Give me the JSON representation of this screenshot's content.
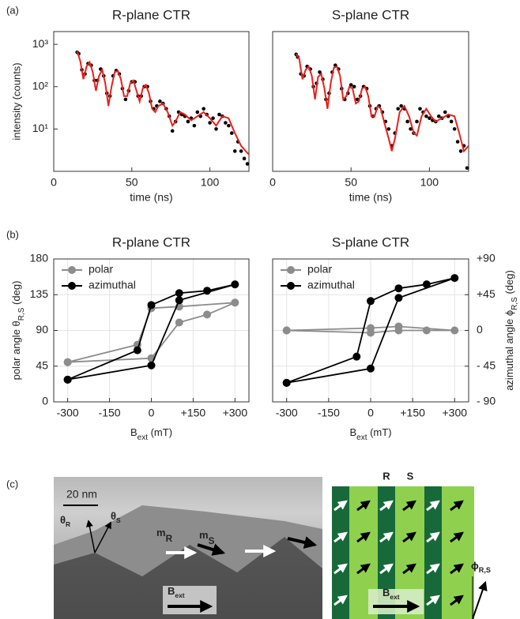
{
  "panel_labels": [
    "(a)",
    "(b)",
    "(c)"
  ],
  "chart_data": [
    {
      "type": "line",
      "title": "R-plane CTR",
      "xlabel": "time (ns)",
      "ylabel": "intensity (counts)",
      "xlim": [
        0,
        125
      ],
      "xticks": [
        0,
        50,
        100
      ],
      "ylim": [
        1,
        2000
      ],
      "log_y": true,
      "yticks": [
        {
          "value": 10,
          "label": "10¹"
        },
        {
          "value": 100,
          "label": "10²"
        },
        {
          "value": 1000,
          "label": "10³"
        }
      ],
      "series": [
        {
          "mode": "markers",
          "color": "#000000",
          "x": [
            15,
            16,
            18,
            20,
            22,
            24,
            26,
            28,
            30,
            32,
            34,
            36,
            38,
            40,
            42,
            44,
            46,
            48,
            50,
            52,
            54,
            56,
            58,
            60,
            62,
            64,
            66,
            68,
            70,
            72,
            74,
            76,
            78,
            80,
            82,
            84,
            86,
            88,
            90,
            92,
            94,
            96,
            98,
            100,
            102,
            104,
            106,
            108,
            110,
            112,
            114,
            116,
            118,
            120,
            122,
            124
          ],
          "values": [
            650,
            600,
            250,
            200,
            350,
            320,
            140,
            140,
            260,
            180,
            70,
            60,
            180,
            240,
            200,
            90,
            50,
            80,
            130,
            130,
            60,
            60,
            100,
            100,
            45,
            30,
            35,
            45,
            40,
            30,
            20,
            9,
            15,
            25,
            22,
            20,
            15,
            18,
            12,
            25,
            20,
            30,
            22,
            14,
            18,
            10,
            22,
            20,
            14,
            12,
            8,
            3,
            5,
            3,
            2,
            1.5
          ]
        },
        {
          "mode": "line",
          "color": "#e8211c",
          "x": [
            15,
            17,
            19,
            21,
            23,
            25,
            27,
            29,
            31,
            33,
            35,
            37,
            39,
            41,
            43,
            45,
            47,
            49,
            51,
            53,
            55,
            57,
            59,
            61,
            63,
            65,
            67,
            70,
            73,
            76,
            78,
            81,
            84,
            88,
            92,
            96,
            100,
            104,
            108,
            112,
            116,
            120,
            123,
            125
          ],
          "values": [
            700,
            400,
            150,
            300,
            380,
            220,
            80,
            180,
            250,
            120,
            35,
            100,
            220,
            240,
            150,
            60,
            60,
            120,
            140,
            80,
            45,
            90,
            110,
            70,
            30,
            25,
            35,
            40,
            25,
            12,
            15,
            25,
            22,
            16,
            20,
            25,
            18,
            12,
            20,
            18,
            8,
            4,
            3,
            2.5
          ]
        }
      ]
    },
    {
      "type": "line",
      "title": "S-plane CTR",
      "xlabel": "time (ns)",
      "xlim": [
        0,
        125
      ],
      "xticks": [
        0,
        50,
        100
      ],
      "ylim": [
        1,
        2000
      ],
      "log_y": true,
      "series": [
        {
          "mode": "markers",
          "color": "#000000",
          "x": [
            15,
            16,
            18,
            20,
            22,
            24,
            26,
            28,
            30,
            32,
            34,
            36,
            38,
            40,
            42,
            44,
            46,
            48,
            50,
            52,
            54,
            56,
            58,
            60,
            62,
            64,
            66,
            68,
            70,
            72,
            74,
            76,
            78,
            80,
            82,
            84,
            86,
            88,
            90,
            92,
            94,
            96,
            98,
            100,
            102,
            104,
            106,
            108,
            110,
            112,
            114,
            116,
            118,
            120,
            122,
            124
          ],
          "values": [
            580,
            500,
            200,
            180,
            300,
            260,
            100,
            120,
            220,
            150,
            50,
            70,
            220,
            320,
            260,
            90,
            50,
            70,
            110,
            100,
            50,
            60,
            100,
            90,
            35,
            20,
            30,
            35,
            25,
            15,
            10,
            4,
            8,
            30,
            35,
            30,
            15,
            10,
            8,
            15,
            30,
            25,
            20,
            18,
            16,
            15,
            20,
            18,
            25,
            20,
            15,
            10,
            5,
            3,
            4,
            1.2
          ]
        },
        {
          "mode": "line",
          "color": "#e8211c",
          "x": [
            15,
            17,
            19,
            21,
            23,
            25,
            27,
            29,
            31,
            33,
            35,
            37,
            39,
            41,
            43,
            45,
            47,
            49,
            51,
            53,
            55,
            57,
            59,
            61,
            63,
            65,
            67,
            69,
            71,
            74,
            76,
            78,
            81,
            84,
            87,
            90,
            92,
            95,
            98,
            101,
            104,
            108,
            112,
            116,
            119,
            122,
            125
          ],
          "values": [
            600,
            450,
            150,
            250,
            300,
            180,
            50,
            170,
            200,
            90,
            30,
            120,
            280,
            300,
            180,
            50,
            60,
            100,
            90,
            40,
            45,
            90,
            100,
            60,
            20,
            20,
            35,
            30,
            15,
            6,
            3,
            6,
            25,
            35,
            20,
            8,
            7,
            20,
            30,
            20,
            15,
            18,
            22,
            20,
            8,
            3,
            4
          ]
        }
      ]
    },
    {
      "type": "line",
      "title": "R-plane CTR",
      "xlabel_parts": [
        {
          "text": "B"
        },
        {
          "text": "ext",
          "sub": true
        },
        {
          "text": " (mT)"
        }
      ],
      "ylabel_parts": [
        {
          "text": "polar angle θ"
        },
        {
          "text": "R,S",
          "sub": true
        },
        {
          "text": " (deg)"
        }
      ],
      "xlim": [
        -350,
        350
      ],
      "xticks": [
        -300,
        -150,
        0,
        {
          "value": 150,
          "label": "+150"
        },
        {
          "value": 300,
          "label": "+300"
        }
      ],
      "ylim": [
        0,
        180
      ],
      "yticks": [
        0,
        45,
        90,
        135,
        180
      ],
      "grid": true,
      "legend": "upper-left",
      "series": [
        {
          "name": "polar",
          "mode": "line-markers",
          "color": "#8c8c8c",
          "x": [
            -300,
            -50,
            0,
            100,
            300,
            200,
            100,
            0,
            -300
          ],
          "values": [
            50,
            72,
            118,
            120,
            125,
            110,
            100,
            55,
            50
          ]
        },
        {
          "name": "azimuthal",
          "mode": "line-markers",
          "color": "#000000",
          "x": [
            -300,
            -50,
            0,
            100,
            200,
            300,
            100,
            0,
            -300
          ],
          "values": [
            28,
            65,
            122,
            137,
            140,
            148,
            128,
            46,
            28
          ]
        }
      ]
    },
    {
      "type": "line",
      "title": "S-plane CTR",
      "xlabel_parts": [
        {
          "text": "B"
        },
        {
          "text": "ext",
          "sub": true
        },
        {
          "text": " (mT)"
        }
      ],
      "y2label_parts": [
        {
          "text": "azimuthal angle ϕ"
        },
        {
          "text": "R,S",
          "sub": true
        },
        {
          "text": " (deg)"
        }
      ],
      "xlim": [
        -350,
        350
      ],
      "xticks": [
        -300,
        -150,
        0,
        {
          "value": 150,
          "label": "+150"
        },
        {
          "value": 300,
          "label": "+300"
        }
      ],
      "y2lim": [
        -90,
        90
      ],
      "y2ticks": [
        {
          "value": -90,
          "label": "- 90"
        },
        {
          "value": -45,
          "label": "- 45"
        },
        0,
        {
          "value": 45,
          "label": "+45"
        },
        {
          "value": 90,
          "label": "+90"
        }
      ],
      "grid": true,
      "legend": "upper-left",
      "series": [
        {
          "name": "polar",
          "mode": "line-markers",
          "color": "#8c8c8c",
          "axis": "y2",
          "x": [
            -300,
            0,
            100,
            300,
            200,
            100,
            0,
            -300
          ],
          "values": [
            0,
            3,
            5,
            0,
            0,
            0,
            -3,
            0
          ]
        },
        {
          "name": "azimuthal",
          "mode": "line-markers",
          "color": "#000000",
          "axis": "y2",
          "x": [
            -300,
            -50,
            0,
            100,
            200,
            300,
            100,
            0,
            -300
          ],
          "values": [
            -66,
            -33,
            37,
            53,
            58,
            66,
            41,
            -48,
            -66
          ]
        }
      ]
    }
  ],
  "micrograph": {
    "scale_bar": "20 nm",
    "labels": [
      {
        "text": "m",
        "sub": "R"
      },
      {
        "text": "m",
        "sub": "S"
      },
      {
        "text": "B",
        "sub": "ext"
      },
      {
        "text": "θ",
        "sub": "R"
      },
      {
        "text": "θ",
        "sub": "S"
      }
    ]
  },
  "schematic": {
    "domains": [
      "R",
      "S"
    ],
    "labels": [
      {
        "text": "B",
        "sub": "ext"
      },
      {
        "text": "ϕ",
        "sub": "R,S"
      }
    ]
  }
}
